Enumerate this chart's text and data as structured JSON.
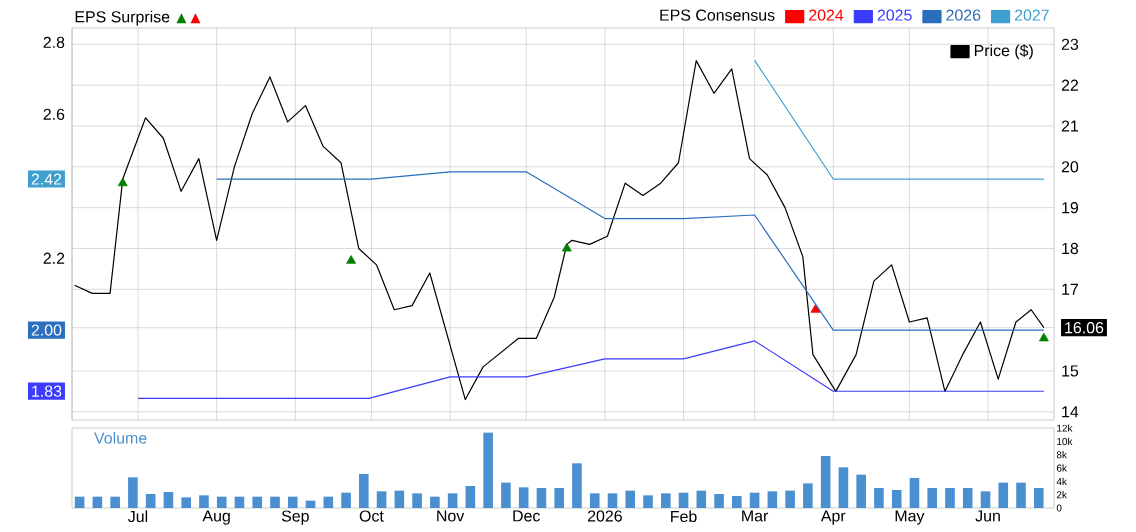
{
  "chart_data": [
    {
      "type": "line",
      "annotations": [
        "EPS Surprise"
      ],
      "legend_title": "EPS Consensus",
      "legend": "top right",
      "grid": true,
      "tick_labels": "y",
      "xlim": [
        "2025-06-05",
        "2026-06-27"
      ],
      "xticks": [
        {
          "value": "2025-07-01",
          "label": null
        },
        {
          "value": "2025-08-01",
          "label": null
        },
        {
          "value": "2025-09-01",
          "label": null
        },
        {
          "value": "2025-10-01",
          "label": null
        },
        {
          "value": "2025-11-01",
          "label": null
        },
        {
          "value": "2025-12-01",
          "label": null
        },
        {
          "value": "2026-01-01",
          "label": null
        },
        {
          "value": "2026-02-01",
          "label": null
        },
        {
          "value": "2026-03-01",
          "label": null
        },
        {
          "value": "2026-04-01",
          "label": null
        },
        {
          "value": "2026-05-01",
          "label": null
        },
        {
          "value": "2026-06-01",
          "label": null
        }
      ],
      "ylim": [
        1.75,
        2.84
      ],
      "yticks": [
        1.83,
        {
          "value": 2,
          "label": "2.00"
        },
        2.2,
        2.42,
        2.6,
        2.8
      ],
      "y2lim": [
        13.8,
        23.4
      ],
      "y2ticks": [
        14,
        15,
        16.06,
        17,
        18,
        19,
        20,
        21,
        22,
        23
      ],
      "series": [
        {
          "name": "2024",
          "color": "#ff0000"
        },
        {
          "name": "2025",
          "color": "#3c3cff",
          "x": [
            "2025-07-01",
            "2025-09-30",
            "2025-11-01",
            "2025-12-01",
            "2026-01-01",
            "2026-02-01",
            "2026-03-01",
            "2026-04-01",
            "2026-06-23"
          ],
          "values": [
            1.81,
            1.81,
            1.87,
            1.87,
            1.92,
            1.92,
            1.97,
            1.83,
            1.83
          ]
        },
        {
          "name": "2026",
          "color": "#2a6ebd",
          "x": [
            "2025-08-01",
            "2025-10-01",
            "2025-11-01",
            "2025-12-01",
            "2026-01-01",
            "2026-02-01",
            "2026-03-01",
            "2026-04-01",
            "2026-06-23"
          ],
          "values": [
            2.42,
            2.42,
            2.44,
            2.44,
            2.31,
            2.31,
            2.32,
            2.0,
            2.0
          ]
        },
        {
          "name": "2027",
          "color": "#3fa0d0",
          "x": [
            "2026-03-01",
            "2026-04-01",
            "2026-06-23"
          ],
          "values": [
            2.75,
            2.42,
            2.42
          ]
        },
        {
          "name": "Price ($)",
          "color": "#000000",
          "axis": "y2",
          "x": [
            "2025-06-06",
            "2025-06-13",
            "2025-06-20",
            "2025-06-25",
            "2025-07-04",
            "2025-07-11",
            "2025-07-18",
            "2025-07-25",
            "2025-08-01",
            "2025-08-08",
            "2025-08-15",
            "2025-08-22",
            "2025-08-29",
            "2025-09-05",
            "2025-09-12",
            "2025-09-19",
            "2025-09-26",
            "2025-10-03",
            "2025-10-10",
            "2025-10-17",
            "2025-10-24",
            "2025-11-07",
            "2025-11-14",
            "2025-11-28",
            "2025-12-05",
            "2025-12-12",
            "2025-12-17",
            "2025-12-19",
            "2025-12-26",
            "2026-01-02",
            "2026-01-09",
            "2026-01-16",
            "2026-01-23",
            "2026-01-30",
            "2026-02-06",
            "2026-02-13",
            "2026-02-20",
            "2026-02-27",
            "2026-03-06",
            "2026-03-13",
            "2026-03-20",
            "2026-03-24",
            "2026-04-02",
            "2026-04-10",
            "2026-04-17",
            "2026-04-24",
            "2026-05-01",
            "2026-05-08",
            "2026-05-15",
            "2026-05-22",
            "2026-05-29",
            "2026-06-05",
            "2026-06-12",
            "2026-06-18",
            "2026-06-23"
          ],
          "values": [
            17.1,
            16.9,
            16.9,
            19.7,
            21.2,
            20.7,
            19.4,
            20.2,
            18.2,
            20.0,
            21.3,
            22.2,
            21.1,
            21.5,
            20.5,
            20.1,
            18.0,
            17.6,
            16.5,
            16.6,
            17.4,
            14.3,
            15.1,
            15.8,
            15.8,
            16.8,
            18.1,
            18.2,
            18.1,
            18.3,
            19.6,
            19.3,
            19.6,
            20.1,
            22.6,
            21.8,
            22.4,
            20.2,
            19.8,
            19.0,
            17.8,
            15.4,
            14.5,
            15.4,
            17.2,
            17.6,
            16.2,
            16.3,
            14.5,
            15.4,
            16.2,
            14.8,
            16.2,
            16.5,
            16.06
          ]
        },
        {
          "type": "scatter",
          "marker": "triangle",
          "color": "#008000",
          "axis": "y2",
          "x": [
            "2025-06-25",
            "2025-09-23",
            "2025-12-17",
            "2026-06-23"
          ],
          "values": [
            19.6,
            17.7,
            18.0,
            15.8
          ]
        },
        {
          "type": "scatter",
          "marker": "triangle",
          "color": "#ff0000",
          "axis": "y2",
          "x": [
            "2026-03-25"
          ],
          "values": [
            16.5
          ]
        }
      ]
    },
    {
      "type": "bar",
      "title": "Volume",
      "color": "#4a8fd0",
      "xlim": [
        "2025-06-05",
        "2026-06-27"
      ],
      "xticks": [
        {
          "value": "2025-07-01",
          "label": "Jul"
        },
        {
          "value": "2025-08-01",
          "label": "Aug"
        },
        {
          "value": "2025-09-01",
          "label": "Sep"
        },
        {
          "value": "2025-10-01",
          "label": "Oct"
        },
        {
          "value": "2025-11-01",
          "label": "Nov"
        },
        {
          "value": "2025-12-01",
          "label": "Dec"
        },
        {
          "value": "2026-01-01",
          "label": "2026"
        },
        {
          "value": "2026-02-01",
          "label": "Feb"
        },
        {
          "value": "2026-03-01",
          "label": "Mar"
        },
        {
          "value": "2026-04-01",
          "label": "Apr"
        },
        {
          "value": "2026-05-01",
          "label": "May"
        },
        {
          "value": "2026-06-01",
          "label": "Jun"
        }
      ],
      "ylim": [
        0,
        12
      ],
      "yticks": [
        0,
        {
          "value": 2,
          "label": "2k"
        },
        {
          "value": 4,
          "label": "4k"
        },
        {
          "value": 6,
          "label": "6k"
        },
        {
          "value": 8,
          "label": "8k"
        },
        {
          "value": 10,
          "label": "10k"
        },
        {
          "value": 12,
          "label": "12k"
        }
      ],
      "x": [
        "2025-06-08",
        "2025-06-15",
        "2025-06-22",
        "2025-06-29",
        "2025-07-06",
        "2025-07-13",
        "2025-07-20",
        "2025-07-27",
        "2025-08-03",
        "2025-08-10",
        "2025-08-17",
        "2025-08-24",
        "2025-08-31",
        "2025-09-07",
        "2025-09-14",
        "2025-09-21",
        "2025-09-28",
        "2025-10-05",
        "2025-10-12",
        "2025-10-19",
        "2025-10-26",
        "2025-11-02",
        "2025-11-09",
        "2025-11-16",
        "2025-11-23",
        "2025-11-30",
        "2025-12-07",
        "2025-12-14",
        "2025-12-21",
        "2025-12-28",
        "2026-01-04",
        "2026-01-11",
        "2026-01-18",
        "2026-01-25",
        "2026-02-01",
        "2026-02-08",
        "2026-02-15",
        "2026-02-22",
        "2026-03-01",
        "2026-03-08",
        "2026-03-15",
        "2026-03-22",
        "2026-03-29",
        "2026-04-05",
        "2026-04-12",
        "2026-04-19",
        "2026-04-26",
        "2026-05-03",
        "2026-05-10",
        "2026-05-17",
        "2026-05-24",
        "2026-05-31",
        "2026-06-07",
        "2026-06-14",
        "2026-06-21"
      ],
      "values": [
        1.7,
        1.7,
        1.7,
        4.6,
        2.1,
        2.4,
        1.6,
        1.9,
        1.7,
        1.7,
        1.7,
        1.7,
        1.7,
        1.1,
        1.7,
        2.3,
        5.1,
        2.5,
        2.6,
        2.2,
        1.7,
        2.2,
        3.3,
        11.3,
        3.8,
        3.1,
        3.0,
        3.0,
        6.7,
        2.2,
        2.2,
        2.6,
        1.9,
        2.2,
        2.3,
        2.6,
        2.1,
        1.8,
        2.3,
        2.5,
        2.6,
        3.7,
        7.8,
        6.1,
        5.0,
        3.0,
        2.7,
        4.5,
        3.0,
        3.0,
        3.0,
        2.5,
        3.8,
        3.8,
        3.0
      ]
    }
  ]
}
